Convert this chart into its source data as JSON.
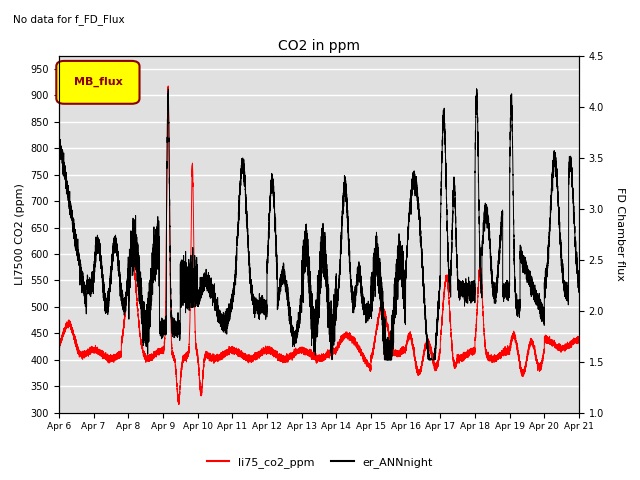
{
  "title": "CO2 in ppm",
  "subtitle": "No data for f_FD_Flux",
  "ylabel_left": "LI7500 CO2 (ppm)",
  "ylabel_right": "FD Chamber flux",
  "ylim_left": [
    300,
    975
  ],
  "ylim_right": [
    1.0,
    4.5
  ],
  "yticks_left": [
    300,
    350,
    400,
    450,
    500,
    550,
    600,
    650,
    700,
    750,
    800,
    850,
    900,
    950
  ],
  "yticks_right": [
    1.0,
    1.5,
    2.0,
    2.5,
    3.0,
    3.5,
    4.0,
    4.5
  ],
  "xlabel_ticks": [
    "Apr 6",
    "Apr 7",
    "Apr 8",
    "Apr 9",
    "Apr 10",
    "Apr 11",
    "Apr 12",
    "Apr 13",
    "Apr 14",
    "Apr 15",
    "Apr 16",
    "Apr 17",
    "Apr 18",
    "Apr 19",
    "Apr 20",
    "Apr 21"
  ],
  "line1_color": "#ff0000",
  "line2_color": "#000000",
  "line1_label": "li75_co2_ppm",
  "line2_label": "er_ANNnight",
  "legend_box_label": "MB_flux",
  "legend_box_color": "#ffff00",
  "legend_box_border": "#8b0000",
  "plot_bg_color": "#e0e0e0",
  "fig_bg_color": "#ffffff",
  "grid_color": "#ffffff"
}
